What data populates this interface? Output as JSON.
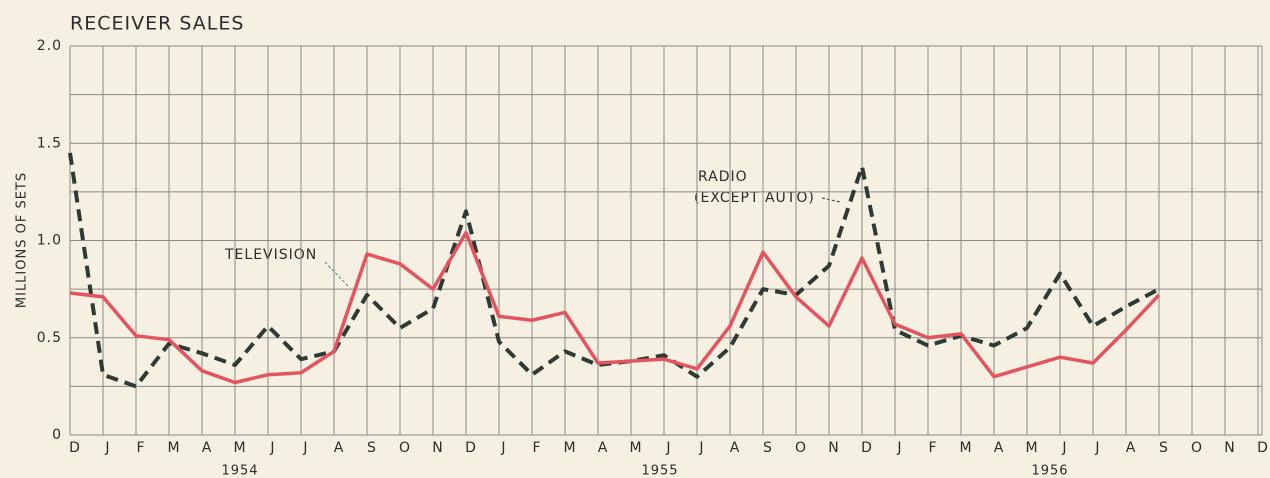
{
  "chart_data": {
    "type": "line",
    "title": "RECEIVER SALES",
    "y_label": "MILLIONS OF SETS",
    "categories": [
      "D",
      "J",
      "F",
      "M",
      "A",
      "M",
      "J",
      "J",
      "A",
      "S",
      "O",
      "N",
      "D",
      "J",
      "F",
      "M",
      "A",
      "M",
      "J",
      "J",
      "A",
      "S",
      "O",
      "N",
      "D",
      "J",
      "F",
      "M",
      "A",
      "M",
      "J",
      "J",
      "A",
      "S",
      "O",
      "N",
      "D"
    ],
    "years": [
      "1954",
      "1955",
      "1956"
    ],
    "ylim": [
      0,
      2
    ],
    "yticks": [
      0,
      0.5,
      {
        "value": 1,
        "label": "1.0"
      },
      1.5,
      {
        "value": 2,
        "label": "2.0"
      }
    ],
    "minor_yticks": [
      0.25,
      0.75,
      1.25,
      1.75
    ],
    "grid": true,
    "series": [
      {
        "name": "TELEVISION",
        "color": "#e4545e",
        "dashed": false,
        "values": [
          0.73,
          0.71,
          0.51,
          0.49,
          0.33,
          0.27,
          0.31,
          0.32,
          0.43,
          0.93,
          0.88,
          0.75,
          1.04,
          0.61,
          0.59,
          0.63,
          0.37,
          0.38,
          0.39,
          0.34,
          0.56,
          0.94,
          0.71,
          0.56,
          0.91,
          0.57,
          0.5,
          0.52,
          0.3,
          0.35,
          0.4,
          0.37,
          0.54,
          0.72,
          null,
          null,
          null
        ]
      },
      {
        "name": "RADIO",
        "note": "(EXCEPT AUTO)",
        "color": "#2f3a35",
        "dashed": true,
        "values": [
          1.45,
          0.31,
          0.25,
          0.47,
          0.42,
          0.36,
          0.56,
          0.39,
          0.43,
          0.72,
          0.55,
          0.65,
          1.15,
          0.48,
          0.31,
          0.43,
          0.36,
          0.38,
          0.41,
          0.3,
          0.45,
          0.75,
          0.72,
          0.87,
          1.38,
          0.54,
          0.46,
          0.51,
          0.46,
          0.55,
          0.83,
          0.56,
          0.66,
          0.75,
          null,
          null,
          null
        ]
      }
    ]
  }
}
